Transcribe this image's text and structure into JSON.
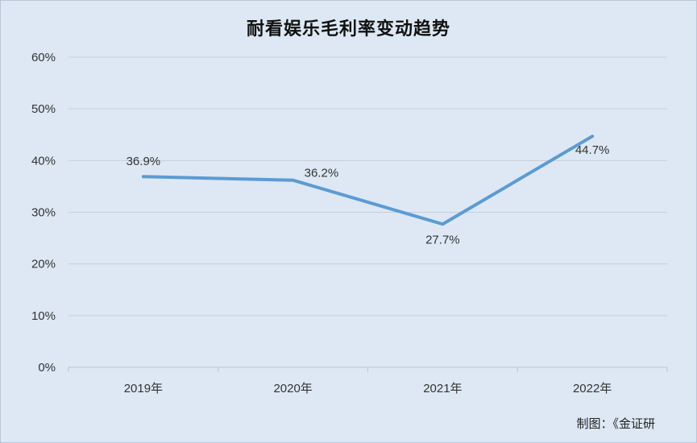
{
  "chart_data": {
    "type": "line",
    "title": "耐看娱乐毛利率变动趋势",
    "categories": [
      "2019年",
      "2020年",
      "2021年",
      "2022年"
    ],
    "series": [
      {
        "values": [
          36.9,
          36.2,
          27.7,
          44.7
        ]
      }
    ],
    "data_labels": [
      "36.9%",
      "36.2%",
      "27.7%",
      "44.7%"
    ],
    "yticks": [
      "0%",
      "10%",
      "20%",
      "30%",
      "40%",
      "50%",
      "60%"
    ],
    "ylim": [
      0,
      60
    ],
    "xlabel": "",
    "ylabel": "",
    "grid": true,
    "line_color": "#5b9bd5"
  },
  "footer": {
    "credit": "制图：《金证研"
  }
}
